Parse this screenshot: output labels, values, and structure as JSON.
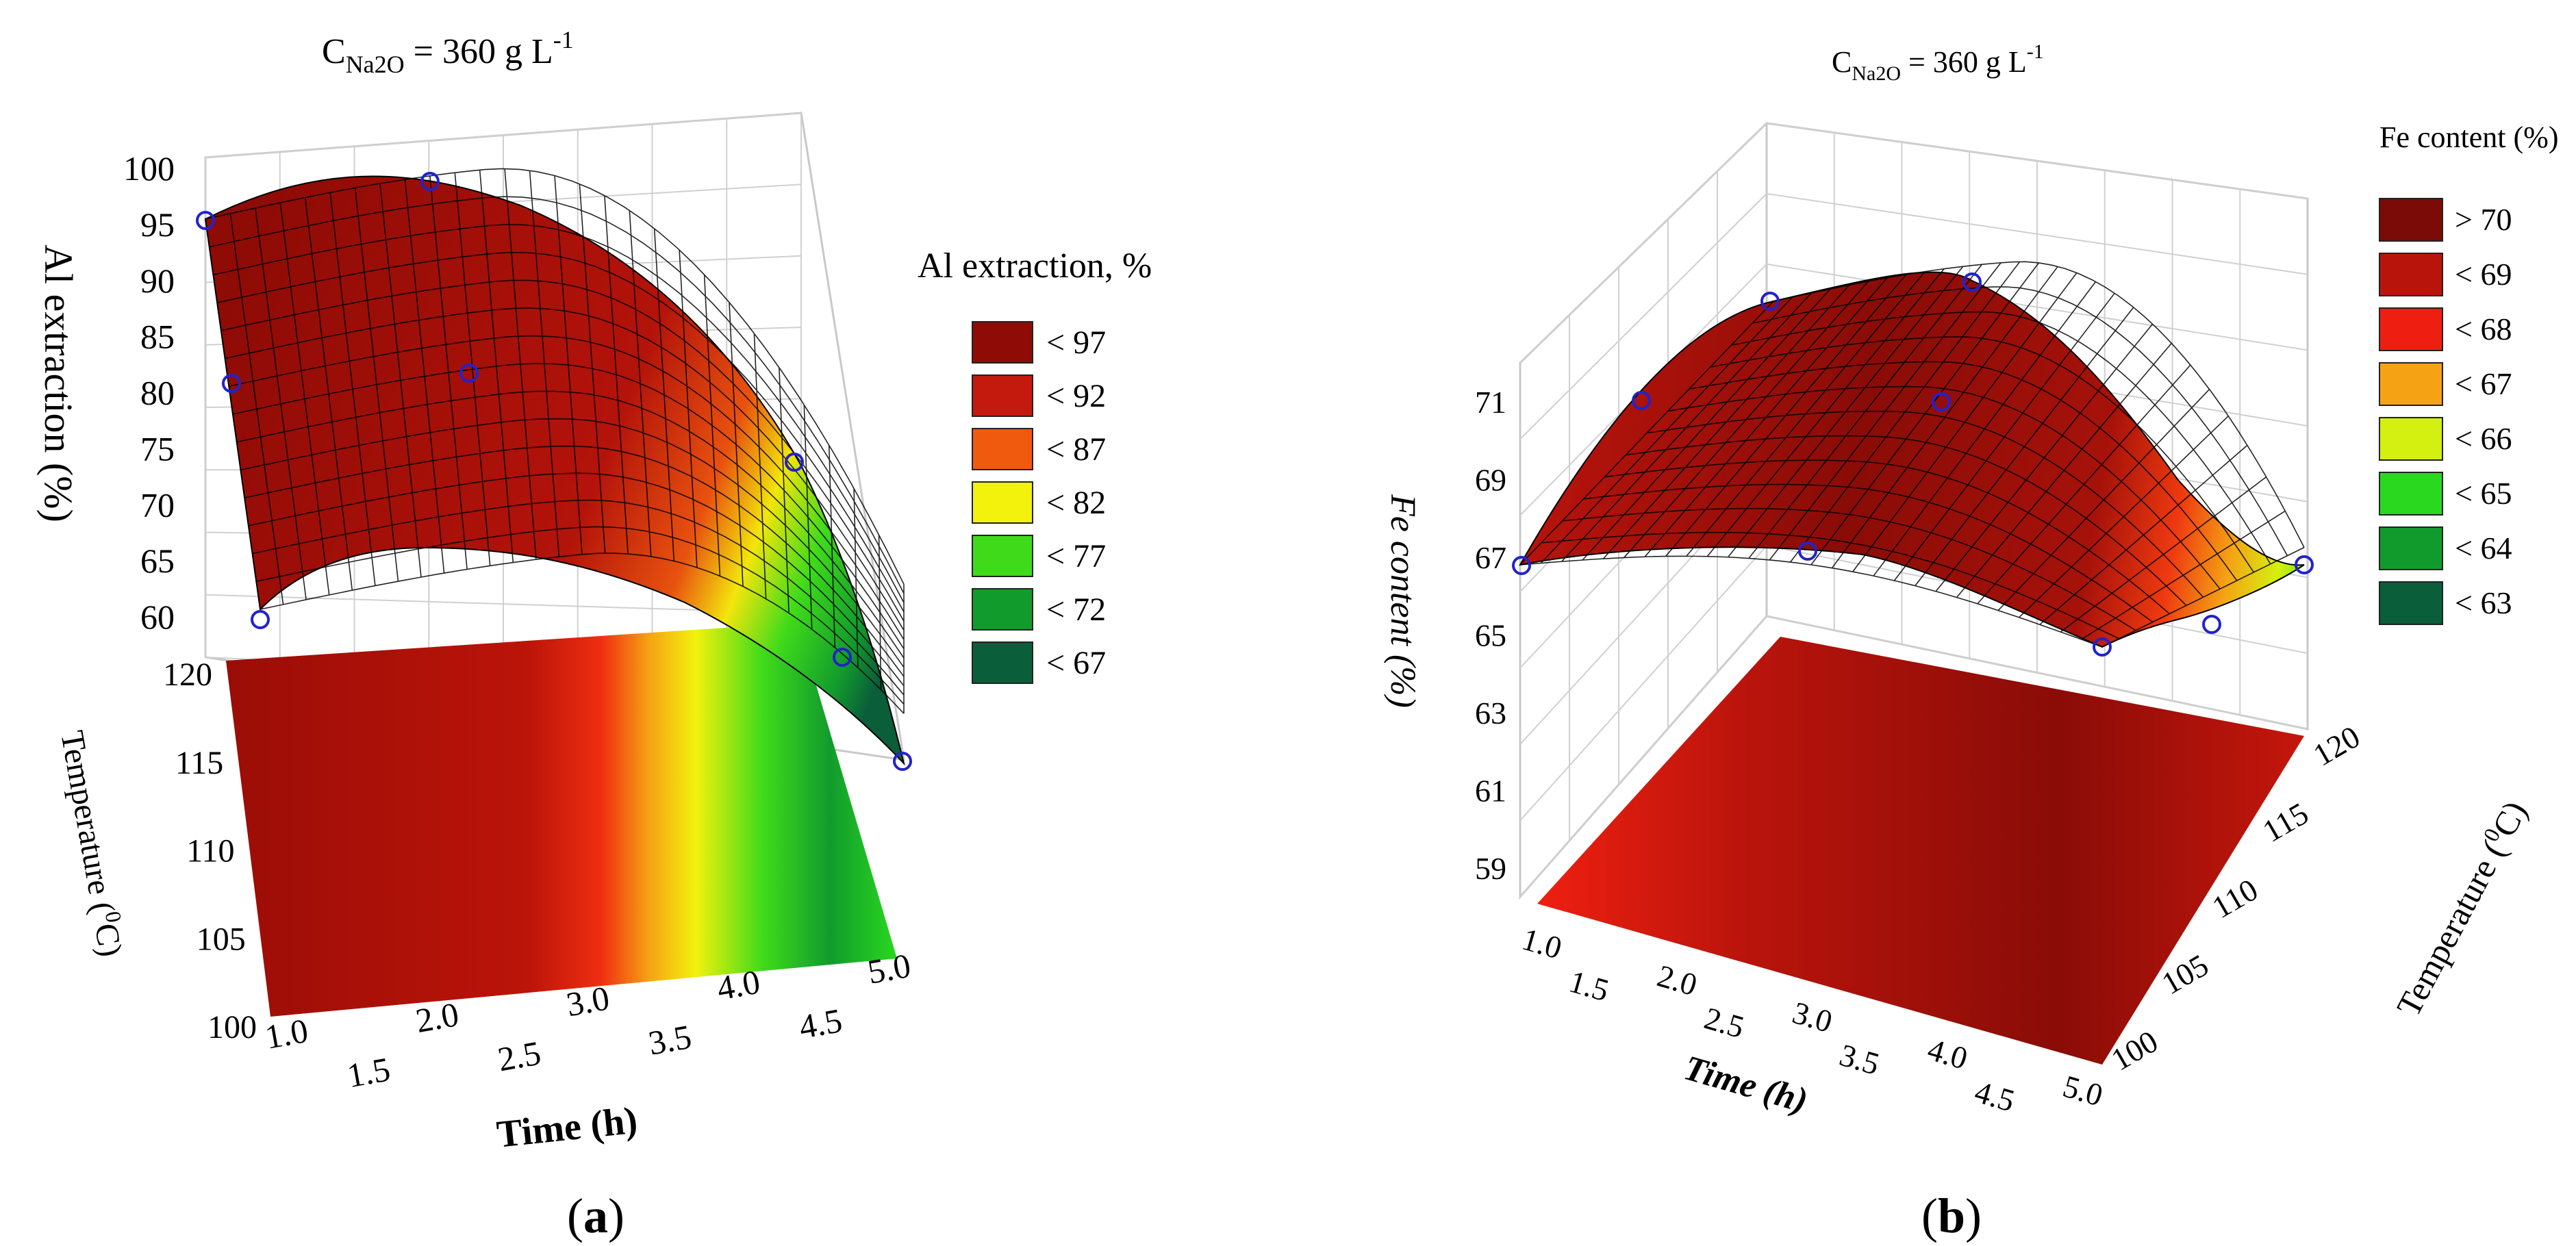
{
  "chart_data": [
    {
      "type": "surface3d",
      "panel": "a",
      "panel_label": "(a)",
      "panel_label_letter": "a",
      "title_prefix": "C",
      "title_subscript": "Na2O",
      "title_rest": " = 360 g L",
      "title_superscript": "-1",
      "zlabel": "Al extraction (%)",
      "xlabel": "Time (h)",
      "ylabel_main": "Temperature (",
      "ylabel_sup": "0",
      "ylabel_end": "C)",
      "x_ticks": [
        "1.0",
        "1.5",
        "2.0",
        "2.5",
        "3.0",
        "3.5",
        "4.0",
        "4.5",
        "5.0"
      ],
      "y_ticks": [
        "100",
        "105",
        "110",
        "115",
        "120"
      ],
      "z_ticks": [
        "60",
        "65",
        "70",
        "75",
        "80",
        "85",
        "90",
        "95",
        "100"
      ],
      "xlim": [
        1.0,
        5.0
      ],
      "ylim": [
        100,
        120
      ],
      "zlim": [
        60,
        100
      ],
      "legend_title": "Al extraction, %",
      "legend": [
        {
          "label": "< 97",
          "color": "#8e0b06"
        },
        {
          "label": "< 92",
          "color": "#c41a0e"
        },
        {
          "label": "< 87",
          "color": "#f05a0e"
        },
        {
          "label": "< 82",
          "color": "#f2f20c"
        },
        {
          "label": "< 77",
          "color": "#3fdb1a"
        },
        {
          "label": "< 72",
          "color": "#129b2d"
        },
        {
          "label": "< 67",
          "color": "#0a5e3a"
        }
      ],
      "data_points": [
        {
          "time": 1.0,
          "temperature": 120,
          "extraction": 94
        },
        {
          "time": 1.0,
          "temperature": 110,
          "extraction": 80
        },
        {
          "time": 1.0,
          "temperature": 100,
          "extraction": 59
        },
        {
          "time": 3.0,
          "temperature": 120,
          "extraction": 98
        },
        {
          "time": 3.0,
          "temperature": 110,
          "extraction": 87
        },
        {
          "time": 5.0,
          "temperature": 120,
          "extraction": 76
        },
        {
          "time": 5.0,
          "temperature": 110,
          "extraction": 62
        },
        {
          "time": 5.0,
          "temperature": 100,
          "extraction": 49
        }
      ]
    },
    {
      "type": "surface3d",
      "panel": "b",
      "panel_label": "(b)",
      "panel_label_letter": "b",
      "title_prefix": "C",
      "title_subscript": "Na2O",
      "title_rest": " = 360 g L",
      "title_superscript": "-1",
      "zlabel": "Fe content (%)",
      "xlabel": "Time (h)",
      "ylabel_main": "Temperature (",
      "ylabel_sup": "0",
      "ylabel_end": "C)",
      "x_ticks": [
        "1.0",
        "1.5",
        "2.0",
        "2.5",
        "3.0",
        "3.5",
        "4.0",
        "4.5",
        "5.0"
      ],
      "y_ticks": [
        "100",
        "105",
        "110",
        "115",
        "120"
      ],
      "z_ticks": [
        "59",
        "61",
        "63",
        "65",
        "67",
        "69",
        "71"
      ],
      "xlim": [
        1.0,
        5.0
      ],
      "ylim": [
        100,
        120
      ],
      "zlim": [
        58,
        72
      ],
      "legend_title": "Fe content (%)",
      "legend": [
        {
          "label": "> 70",
          "color": "#7a0b06"
        },
        {
          "label": "< 69",
          "color": "#b9140c"
        },
        {
          "label": "< 68",
          "color": "#ee1f10"
        },
        {
          "label": "< 67",
          "color": "#f5a214"
        },
        {
          "label": "< 66",
          "color": "#d4f010"
        },
        {
          "label": "< 65",
          "color": "#2ad81f"
        },
        {
          "label": "< 64",
          "color": "#129b2d"
        },
        {
          "label": "< 63",
          "color": "#0a5e3a"
        }
      ],
      "data_points": [
        {
          "time": 1.0,
          "temperature": 100,
          "fe": 67
        },
        {
          "time": 1.0,
          "temperature": 110,
          "fe": 69.5
        },
        {
          "time": 1.0,
          "temperature": 120,
          "fe": 70.5
        },
        {
          "time": 3.0,
          "temperature": 100,
          "fe": 67
        },
        {
          "time": 3.0,
          "temperature": 110,
          "fe": 70.5
        },
        {
          "time": 3.0,
          "temperature": 120,
          "fe": 71
        },
        {
          "time": 5.0,
          "temperature": 100,
          "fe": 64.8
        },
        {
          "time": 5.0,
          "temperature": 110,
          "fe": 65.2
        },
        {
          "time": 5.0,
          "temperature": 120,
          "fe": 66
        }
      ]
    }
  ]
}
